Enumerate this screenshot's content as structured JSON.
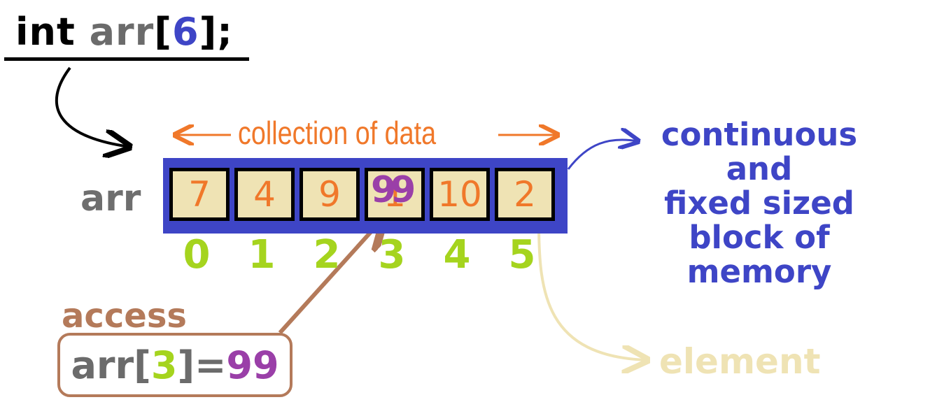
{
  "declaration": {
    "type": "int",
    "name": "arr",
    "open": "[",
    "size": "6",
    "close": "];"
  },
  "collection_label": "collection of data",
  "array_label": "arr",
  "cells": [
    "7",
    "4",
    "9",
    "1",
    "10",
    "2"
  ],
  "overwrite_value": "99",
  "indices": [
    "0",
    "1",
    "2",
    "3",
    "4",
    "5"
  ],
  "right_text": {
    "line1": "continuous",
    "line2": "and",
    "line3": "fixed sized",
    "line4": "block of",
    "line5": "memory"
  },
  "access": {
    "label": "access",
    "name": "arr",
    "open": "[",
    "index": "3",
    "close": "]=",
    "value": "99"
  },
  "element_label": "element",
  "colors": {
    "orange": "#f0782a",
    "blue": "#3e45c6",
    "green": "#a5d41e",
    "purple": "#9a3fa8",
    "brown": "#b47a5a",
    "beige": "#efe3b4",
    "gray": "#6b6b6b"
  }
}
